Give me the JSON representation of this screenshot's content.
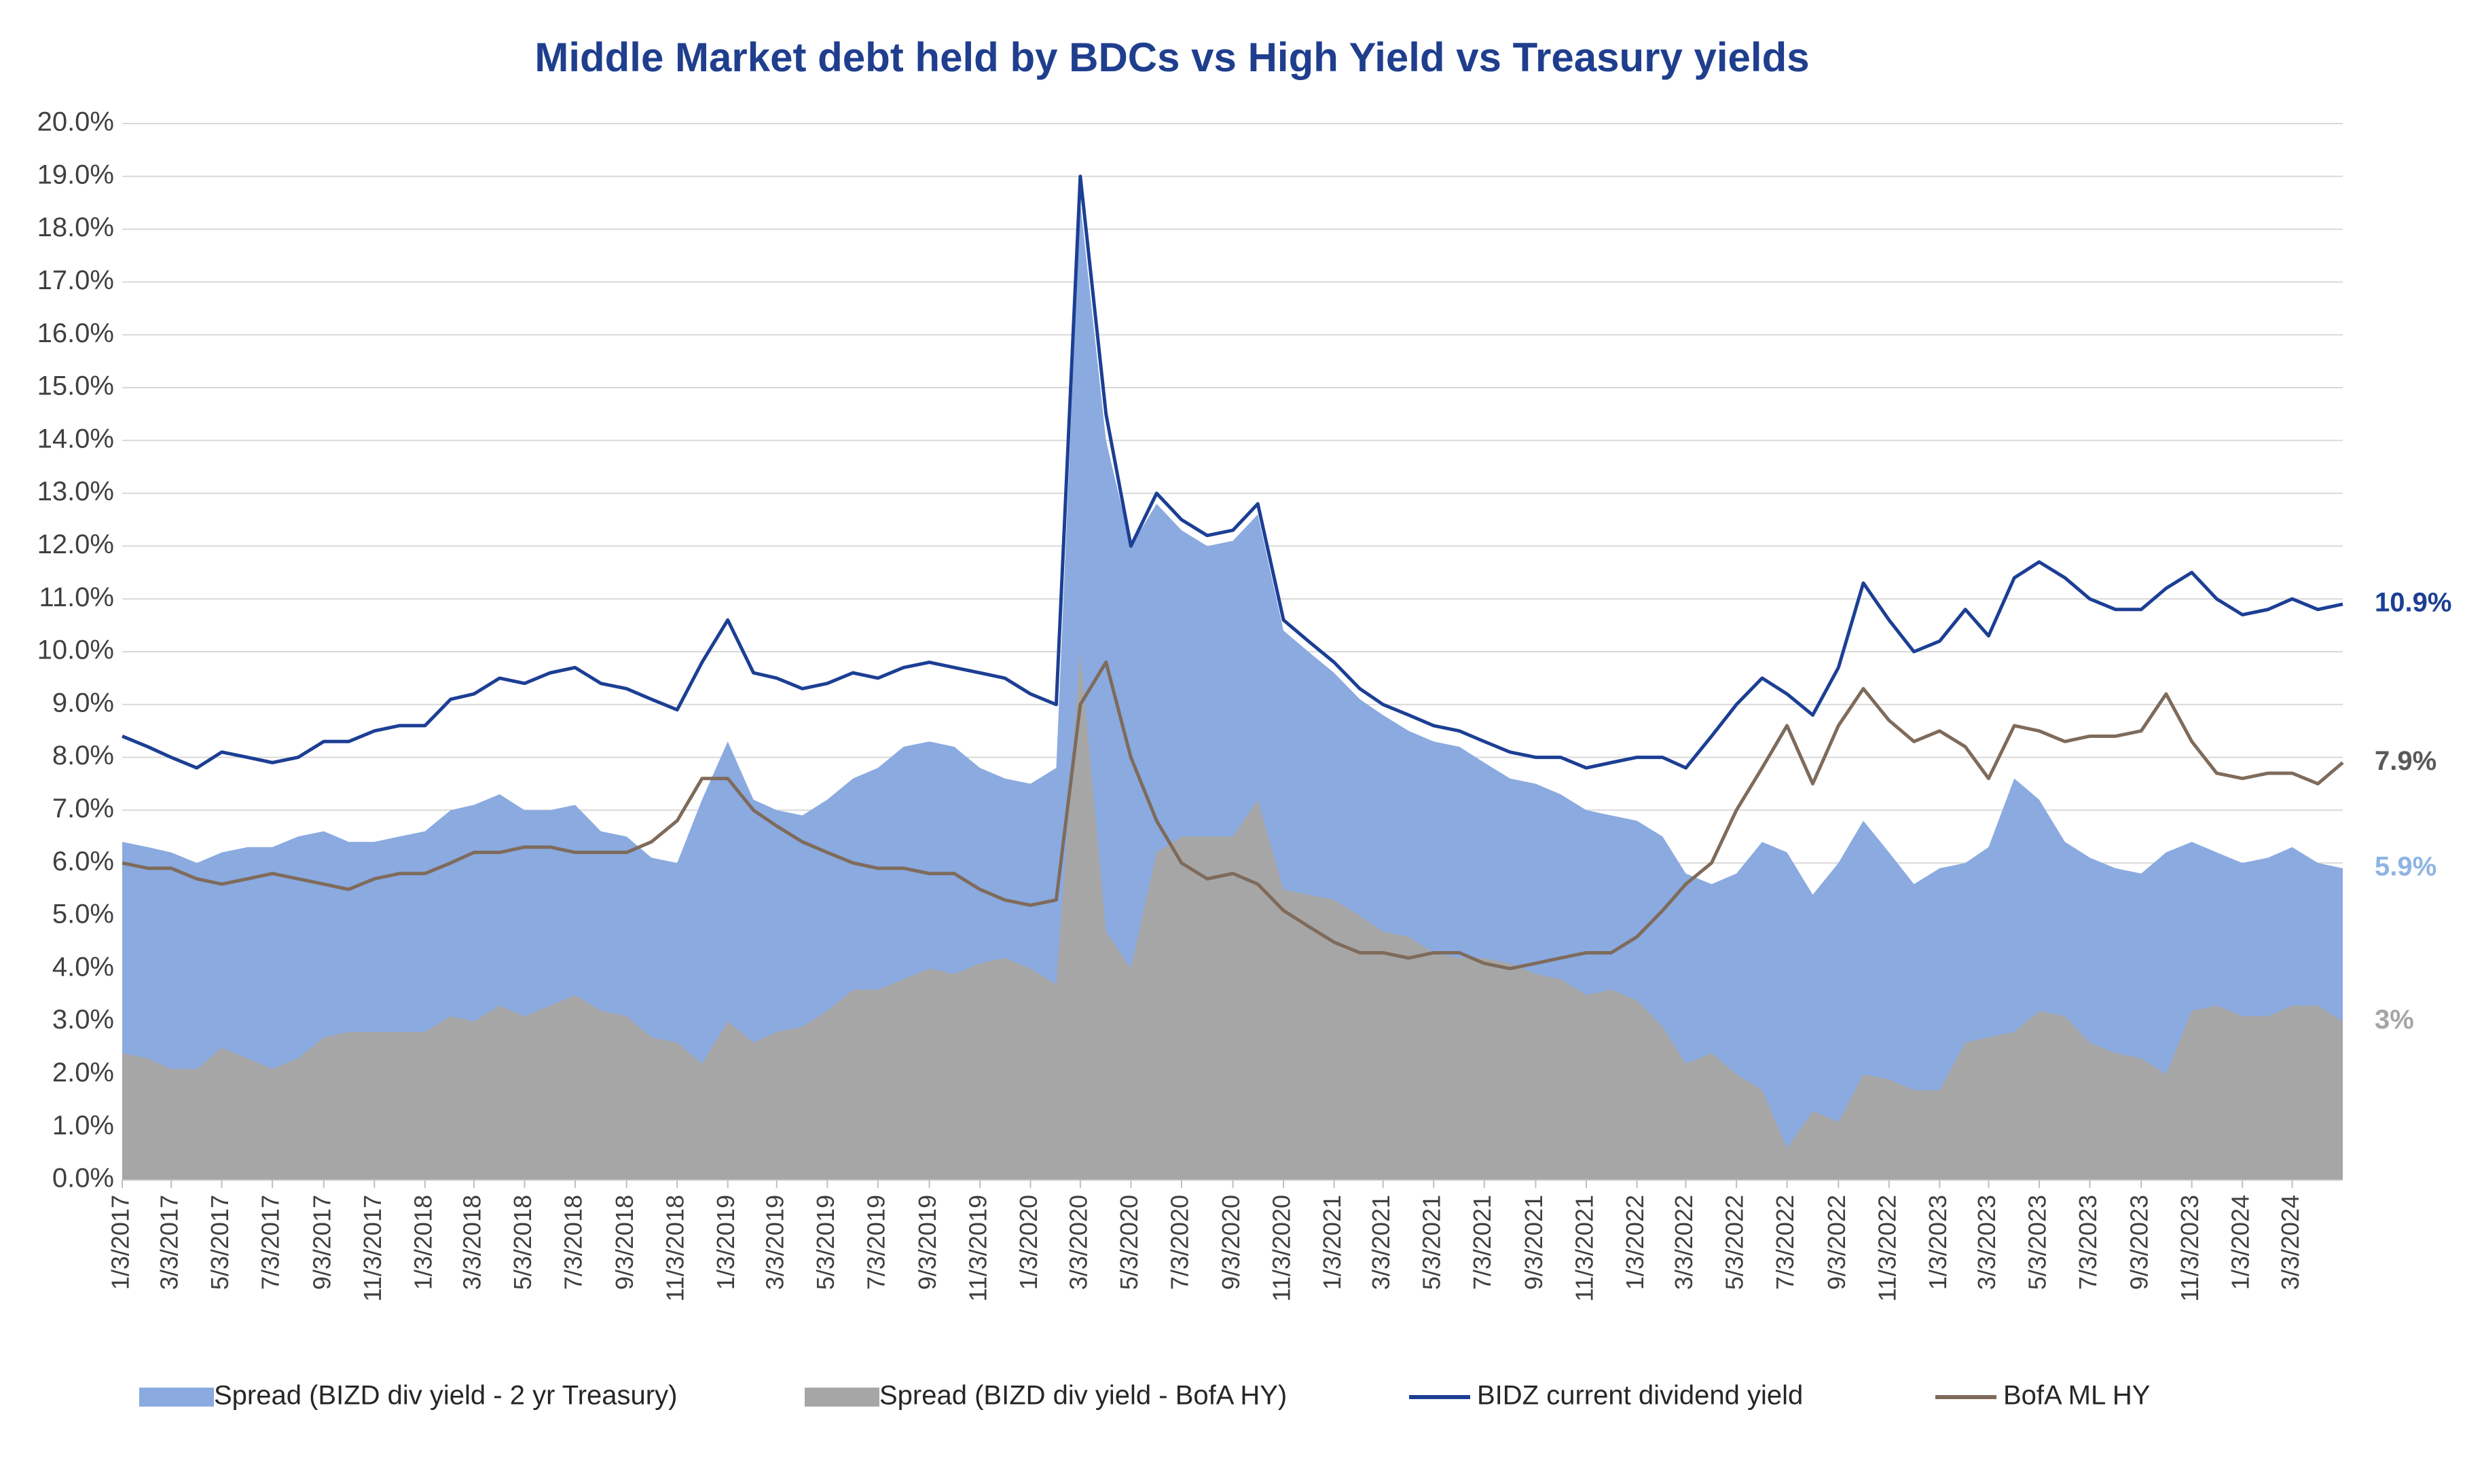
{
  "chart_data": {
    "type": "area",
    "title": "Middle Market debt held by BDCs vs High Yield vs Treasury yields",
    "x": [
      "1/3/2017",
      "2/3/2017",
      "3/3/2017",
      "4/3/2017",
      "5/3/2017",
      "6/3/2017",
      "7/3/2017",
      "8/3/2017",
      "9/3/2017",
      "10/3/2017",
      "11/3/2017",
      "12/3/2017",
      "1/3/2018",
      "2/3/2018",
      "3/3/2018",
      "4/3/2018",
      "5/3/2018",
      "6/3/2018",
      "7/3/2018",
      "8/3/2018",
      "9/3/2018",
      "10/3/2018",
      "11/3/2018",
      "12/3/2018",
      "1/3/2019",
      "2/3/2019",
      "3/3/2019",
      "4/3/2019",
      "5/3/2019",
      "6/3/2019",
      "7/3/2019",
      "8/3/2019",
      "9/3/2019",
      "10/3/2019",
      "11/3/2019",
      "12/3/2019",
      "1/3/2020",
      "2/3/2020",
      "3/3/2020",
      "4/3/2020",
      "5/3/2020",
      "6/3/2020",
      "7/3/2020",
      "8/3/2020",
      "9/3/2020",
      "10/3/2020",
      "11/3/2020",
      "12/3/2020",
      "1/3/2021",
      "2/3/2021",
      "3/3/2021",
      "4/3/2021",
      "5/3/2021",
      "6/3/2021",
      "7/3/2021",
      "8/3/2021",
      "9/3/2021",
      "10/3/2021",
      "11/3/2021",
      "12/3/2021",
      "1/3/2022",
      "2/3/2022",
      "3/3/2022",
      "4/3/2022",
      "5/3/2022",
      "6/3/2022",
      "7/3/2022",
      "8/3/2022",
      "9/3/2022",
      "10/3/2022",
      "11/3/2022",
      "12/3/2022",
      "1/3/2023",
      "2/3/2023",
      "3/3/2023",
      "4/3/2023",
      "5/3/2023",
      "6/3/2023",
      "7/3/2023",
      "8/3/2023",
      "9/3/2023",
      "10/3/2023",
      "11/3/2023",
      "12/3/2023",
      "1/3/2024",
      "2/3/2024",
      "3/3/2024",
      "4/3/2024",
      "5/3/2024"
    ],
    "series": [
      {
        "name": "Spread (BIZD div yield - 2 yr Treasury)",
        "style": "area",
        "color": "#8aaae0",
        "values": [
          6.4,
          6.3,
          6.2,
          6.0,
          6.2,
          6.3,
          6.3,
          6.5,
          6.6,
          6.4,
          6.4,
          6.5,
          6.6,
          7.0,
          7.1,
          7.3,
          7.0,
          7.0,
          7.1,
          6.6,
          6.5,
          6.1,
          6.0,
          7.2,
          8.3,
          7.2,
          7.0,
          6.9,
          7.2,
          7.6,
          7.8,
          8.2,
          8.3,
          8.2,
          7.8,
          7.6,
          7.5,
          7.8,
          18.5,
          14.0,
          12.0,
          12.8,
          12.3,
          12.0,
          12.1,
          12.6,
          10.4,
          10.0,
          9.6,
          9.1,
          8.8,
          8.5,
          8.3,
          8.2,
          7.9,
          7.6,
          7.5,
          7.3,
          7.0,
          6.9,
          6.8,
          6.5,
          5.8,
          5.6,
          5.8,
          6.4,
          6.2,
          5.4,
          6.0,
          6.8,
          6.2,
          5.6,
          5.9,
          6.0,
          6.3,
          7.6,
          7.2,
          6.4,
          6.1,
          5.9,
          5.8,
          6.2,
          6.4,
          6.2,
          6.0,
          6.1,
          6.3,
          6.0,
          5.9
        ]
      },
      {
        "name": "Spread (BIZD div yield - BofA HY)",
        "style": "area",
        "color": "#a6a6a6",
        "values": [
          2.4,
          2.3,
          2.1,
          2.1,
          2.5,
          2.3,
          2.1,
          2.3,
          2.7,
          2.8,
          2.8,
          2.8,
          2.8,
          3.1,
          3.0,
          3.3,
          3.1,
          3.3,
          3.5,
          3.2,
          3.1,
          2.7,
          2.6,
          2.2,
          3.0,
          2.6,
          2.8,
          2.9,
          3.2,
          3.6,
          3.6,
          3.8,
          4.0,
          3.9,
          4.1,
          4.2,
          4.0,
          3.7,
          10.0,
          4.7,
          4.0,
          6.2,
          6.5,
          6.5,
          6.5,
          7.2,
          5.5,
          5.4,
          5.3,
          5.0,
          4.7,
          4.6,
          4.3,
          4.2,
          4.2,
          4.1,
          3.9,
          3.8,
          3.5,
          3.6,
          3.4,
          2.9,
          2.2,
          2.4,
          2.0,
          1.7,
          0.6,
          1.3,
          1.1,
          2.0,
          1.9,
          1.7,
          1.7,
          2.6,
          2.7,
          2.8,
          3.2,
          3.1,
          2.6,
          2.4,
          2.3,
          2.0,
          3.2,
          3.3,
          3.1,
          3.1,
          3.3,
          3.3,
          3.0
        ]
      },
      {
        "name": "BIDZ current dividend yield",
        "style": "line",
        "color": "#1c3f94",
        "values": [
          8.4,
          8.2,
          8.0,
          7.8,
          8.1,
          8.0,
          7.9,
          8.0,
          8.3,
          8.3,
          8.5,
          8.6,
          8.6,
          9.1,
          9.2,
          9.5,
          9.4,
          9.6,
          9.7,
          9.4,
          9.3,
          9.1,
          8.9,
          9.8,
          10.6,
          9.6,
          9.5,
          9.3,
          9.4,
          9.6,
          9.5,
          9.7,
          9.8,
          9.7,
          9.6,
          9.5,
          9.2,
          9.0,
          19.0,
          14.5,
          12.0,
          13.0,
          12.5,
          12.2,
          12.3,
          12.8,
          10.6,
          10.2,
          9.8,
          9.3,
          9.0,
          8.8,
          8.6,
          8.5,
          8.3,
          8.1,
          8.0,
          8.0,
          7.8,
          7.9,
          8.0,
          8.0,
          7.8,
          8.4,
          9.0,
          9.5,
          9.2,
          8.8,
          9.7,
          11.3,
          10.6,
          10.0,
          10.2,
          10.8,
          10.3,
          11.4,
          11.7,
          11.4,
          11.0,
          10.8,
          10.8,
          11.2,
          11.5,
          11.0,
          10.7,
          10.8,
          11.0,
          10.8,
          10.9
        ]
      },
      {
        "name": "BofA ML HY",
        "style": "line",
        "color": "#7f6b5b",
        "values": [
          6.0,
          5.9,
          5.9,
          5.7,
          5.6,
          5.7,
          5.8,
          5.7,
          5.6,
          5.5,
          5.7,
          5.8,
          5.8,
          6.0,
          6.2,
          6.2,
          6.3,
          6.3,
          6.2,
          6.2,
          6.2,
          6.4,
          6.8,
          7.6,
          7.6,
          7.0,
          6.7,
          6.4,
          6.2,
          6.0,
          5.9,
          5.9,
          5.8,
          5.8,
          5.5,
          5.3,
          5.2,
          5.3,
          9.0,
          9.8,
          8.0,
          6.8,
          6.0,
          5.7,
          5.8,
          5.6,
          5.1,
          4.8,
          4.5,
          4.3,
          4.3,
          4.2,
          4.3,
          4.3,
          4.1,
          4.0,
          4.1,
          4.2,
          4.3,
          4.3,
          4.6,
          5.1,
          5.6,
          6.0,
          7.0,
          7.8,
          8.6,
          7.5,
          8.6,
          9.3,
          8.7,
          8.3,
          8.5,
          8.2,
          7.6,
          8.6,
          8.5,
          8.3,
          8.4,
          8.4,
          8.5,
          9.2,
          8.3,
          7.7,
          7.6,
          7.7,
          7.7,
          7.5,
          7.9
        ]
      }
    ],
    "annotations": [
      {
        "label": "10.9%",
        "value": 10.9,
        "color": "#1c3f94"
      },
      {
        "label": "7.9%",
        "value": 7.9,
        "color": "#595959"
      },
      {
        "label": "5.9%",
        "value": 5.9,
        "color": "#8eb4e3"
      },
      {
        "label": "3%",
        "value": 3,
        "color": "#a6a6a6"
      }
    ],
    "xlim": [
      "1/3/2017",
      "5/3/2024"
    ],
    "xticks": [
      "1/3/2017",
      "3/3/2017",
      "5/3/2017",
      "7/3/2017",
      "9/3/2017",
      "11/3/2017",
      "1/3/2018",
      "3/3/2018",
      "5/3/2018",
      "7/3/2018",
      "9/3/2018",
      "11/3/2018",
      "1/3/2019",
      "3/3/2019",
      "5/3/2019",
      "7/3/2019",
      "9/3/2019",
      "11/3/2019",
      "1/3/2020",
      "3/3/2020",
      "5/3/2020",
      "7/3/2020",
      "9/3/2020",
      "11/3/2020",
      "1/3/2021",
      "3/3/2021",
      "5/3/2021",
      "7/3/2021",
      "9/3/2021",
      "11/3/2021",
      "1/3/2022",
      "3/3/2022",
      "5/3/2022",
      "7/3/2022",
      "9/3/2022",
      "11/3/2022",
      "1/3/2023",
      "3/3/2023",
      "5/3/2023",
      "7/3/2023",
      "9/3/2023",
      "11/3/2023",
      "1/3/2024",
      "3/3/2024"
    ],
    "ylim": [
      0,
      20
    ],
    "yticks": [
      {
        "value": 0,
        "label": "0.0%"
      },
      {
        "value": 1,
        "label": "1.0%"
      },
      {
        "value": 2,
        "label": "2.0%"
      },
      {
        "value": 3,
        "label": "3.0%"
      },
      {
        "value": 4,
        "label": "4.0%"
      },
      {
        "value": 5,
        "label": "5.0%"
      },
      {
        "value": 6,
        "label": "6.0%"
      },
      {
        "value": 7,
        "label": "7.0%"
      },
      {
        "value": 8,
        "label": "8.0%"
      },
      {
        "value": 9,
        "label": "9.0%"
      },
      {
        "value": 10,
        "label": "10.0%"
      },
      {
        "value": 11,
        "label": "11.0%"
      },
      {
        "value": 12,
        "label": "12.0%"
      },
      {
        "value": 13,
        "label": "13.0%"
      },
      {
        "value": 14,
        "label": "14.0%"
      },
      {
        "value": 15,
        "label": "15.0%"
      },
      {
        "value": 16,
        "label": "16.0%"
      },
      {
        "value": 17,
        "label": "17.0%"
      },
      {
        "value": 18,
        "label": "18.0%"
      },
      {
        "value": 19,
        "label": "19.0%"
      },
      {
        "value": 20,
        "label": "20.0%"
      }
    ],
    "grid": true,
    "legend": "bottom"
  }
}
